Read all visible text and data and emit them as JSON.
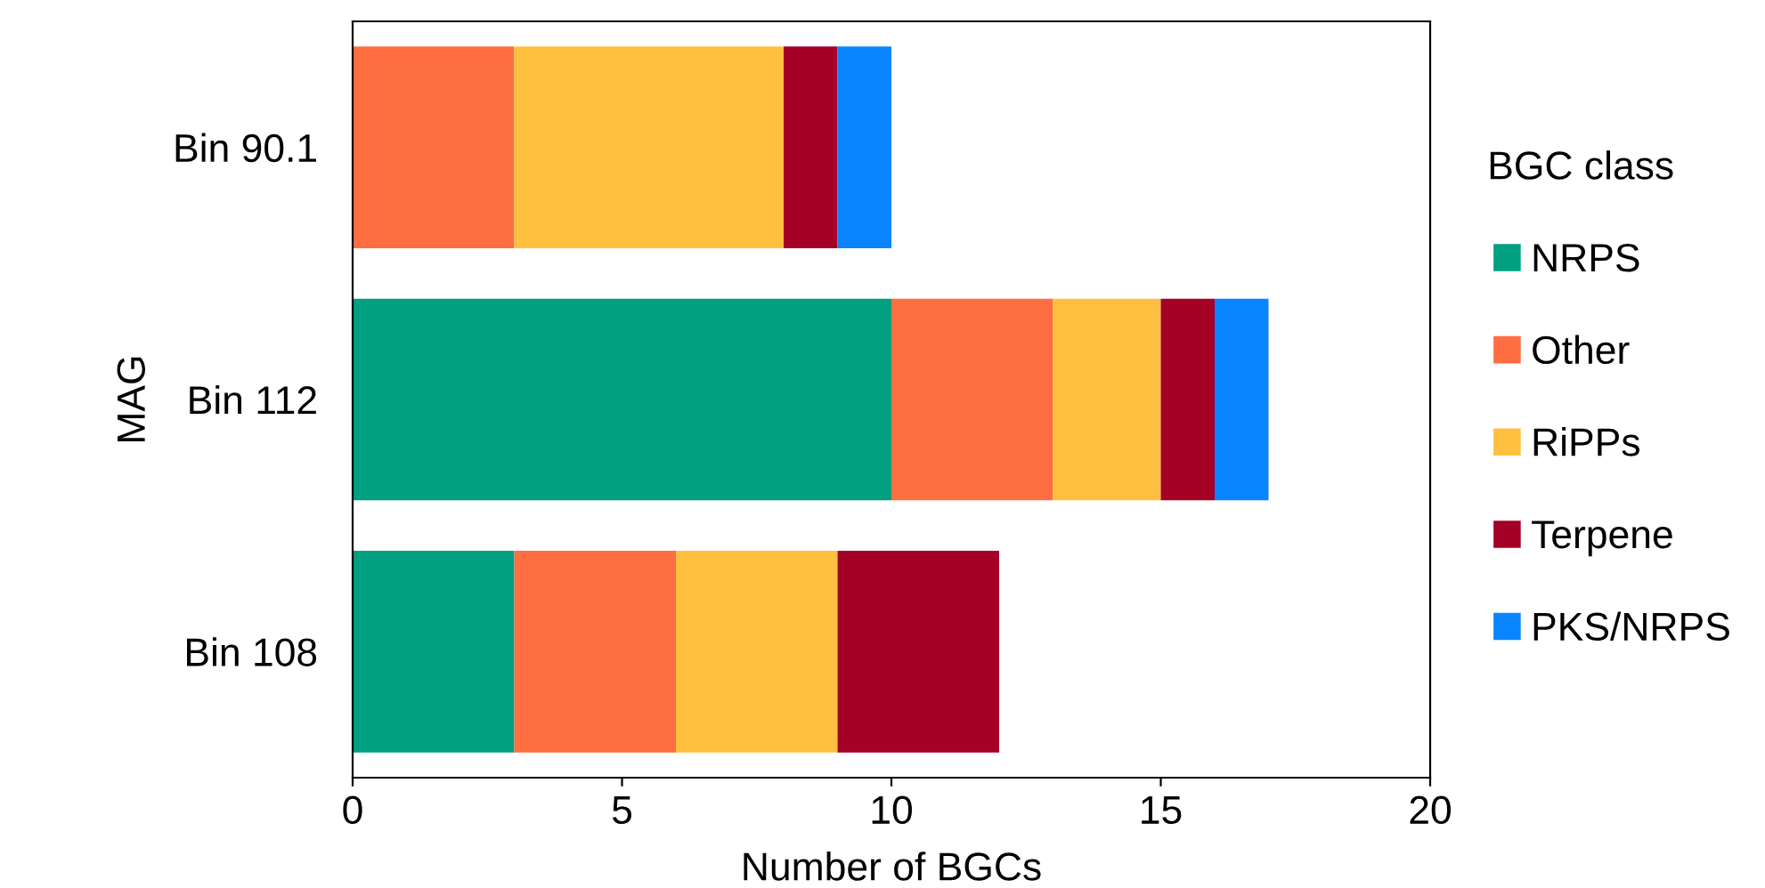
{
  "chart_data": {
    "type": "bar",
    "orientation": "horizontal",
    "stacked": true,
    "categories": [
      "Bin 90.1",
      "Bin 112",
      "Bin 108"
    ],
    "series": [
      {
        "name": "NRPS",
        "color": "#00a080",
        "values": [
          0,
          10,
          3
        ]
      },
      {
        "name": "Other",
        "color": "#ff6e40",
        "values": [
          3,
          3,
          3
        ]
      },
      {
        "name": "RiPPs",
        "color": "#ffc040",
        "values": [
          5,
          2,
          3
        ]
      },
      {
        "name": "Terpene",
        "color": "#a50026",
        "values": [
          1,
          1,
          3
        ]
      },
      {
        "name": "PKS/NRPS",
        "color": "#0a84ff",
        "values": [
          1,
          1,
          0
        ]
      }
    ],
    "xlabel": "Number of BGCs",
    "ylabel": "MAG",
    "legend_title": "BGC class",
    "xlim": [
      0,
      20
    ],
    "xticks": [
      0,
      5,
      10,
      15,
      20
    ],
    "legend": "right",
    "grid": false
  }
}
